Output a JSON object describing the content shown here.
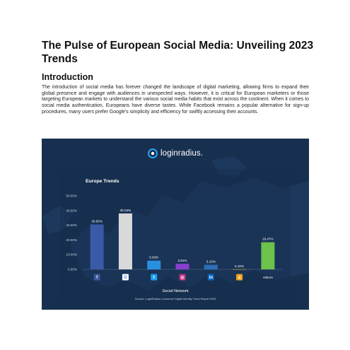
{
  "document": {
    "title": "The Pulse of European Social Media: Unveiling 2023 Trends",
    "section_heading": "Introduction",
    "intro_paragraph": "The introduction of social media has forever changed the landscape of digital marketing, allowing firms to expand their global presence and engage with audiences in unexpected ways. However, it is critical for European marketers or those targeting European markets to understand the various social media habits that exist across the continent. When it comes to social media authentication, Europeans have diverse tastes. While Facebook remains a popular alternative for sign-up procedures, many users prefer Google's simplicity and efficiency for swiftly accessing their accounts."
  },
  "infographic": {
    "brand_part1": "login",
    "brand_part2": "radius.",
    "background_color": "#18304f",
    "source": "Source: LoginRadius Consumer Digital Identity Trend Report 2023"
  },
  "chart_data": {
    "type": "bar",
    "title": "Europe Trends",
    "xlabel": "Social Network",
    "ylabel": "",
    "ylim": [
      0,
      50
    ],
    "y_ticks": [
      "0.00%",
      "10.00%",
      "20.00%",
      "30.00%",
      "40.00%",
      "50.00%"
    ],
    "categories": [
      {
        "icon": "facebook-icon",
        "value": 30.55,
        "label": "30.55%",
        "color": "#3a5aa8",
        "glyph": "f",
        "icon_color": "#3b5998"
      },
      {
        "icon": "google-icon",
        "value": 38.04,
        "label": "38.04%",
        "color": "#d9d9d9",
        "glyph": "G",
        "icon_color": "#ffffff"
      },
      {
        "icon": "twitter-icon",
        "value": 5.93,
        "label": "5.93%",
        "color": "#2a8fe0",
        "glyph": "t",
        "icon_color": "#1da1f2"
      },
      {
        "icon": "instagram-icon",
        "value": 3.81,
        "label": "3.81%",
        "color": "#8a3fd1",
        "glyph": "◎",
        "icon_color": "#c13584"
      },
      {
        "icon": "linkedin-icon",
        "value": 3.1,
        "label": "3.10%",
        "color": "#2d6fb8",
        "glyph": "in",
        "icon_color": "#0a66c2"
      },
      {
        "icon": "amazon-icon",
        "value": 0.1,
        "label": "0.10%",
        "color": "#e8a020",
        "glyph": "a",
        "icon_color": "#f0a020"
      },
      {
        "icon": null,
        "text": "Others",
        "value": 18.47,
        "label": "18.47%",
        "color": "#6cc24a"
      }
    ]
  }
}
